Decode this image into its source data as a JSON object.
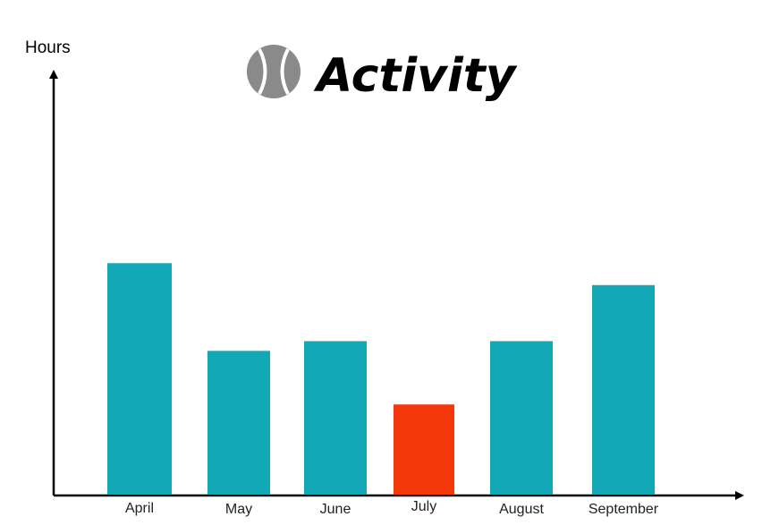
{
  "colors": {
    "bar_default": "#13a8b5",
    "bar_highlight": "#f5380a",
    "axis": "#000000",
    "icon": "#8a8a8a"
  },
  "title_icon": "tennis-ball-icon",
  "chart_data": {
    "type": "bar",
    "title": "Activity",
    "xlabel": "",
    "ylabel": "Hours",
    "categories": [
      "April",
      "May",
      "June",
      "July",
      "August",
      "September"
    ],
    "values": [
      9.5,
      5.9,
      6.3,
      3.7,
      6.3,
      8.6
    ],
    "highlight_index": 3,
    "ylim": [
      0,
      17
    ],
    "grid": false,
    "legend": "none"
  }
}
